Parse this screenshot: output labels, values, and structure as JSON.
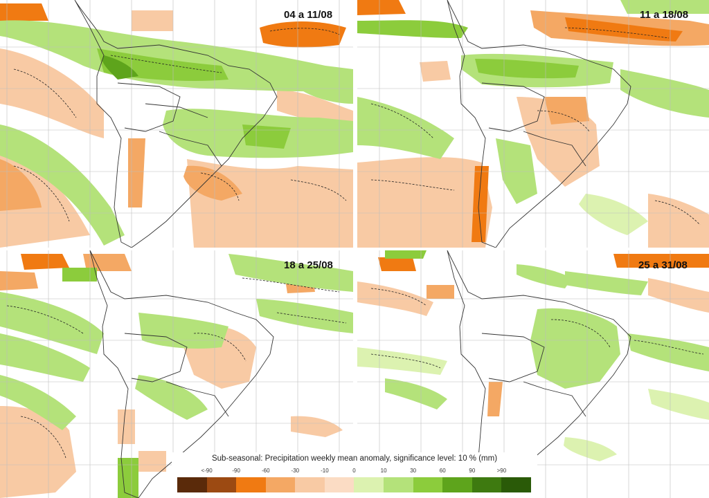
{
  "panels": [
    {
      "title": "04 a 11/08"
    },
    {
      "title": "11 a 18/08"
    },
    {
      "title": "18 a 25/08"
    },
    {
      "title": "25 a 31/08"
    }
  ],
  "legend": {
    "title": "Sub-seasonal: Precipitation weekly mean anomaly, significance level: 10 % (mm)",
    "ticks": [
      "<-90",
      "-90",
      "-60",
      "-30",
      "-10",
      "0",
      "10",
      "30",
      "60",
      "90",
      ">90"
    ],
    "colors": [
      "#5a2a0a",
      "#9c4a12",
      "#f07a12",
      "#f4a864",
      "#f8caa4",
      "#fbdcc4",
      "#dcf2b0",
      "#b4e27a",
      "#8ccc3c",
      "#5ea41c",
      "#3e7a10",
      "#2a5a08"
    ]
  }
}
